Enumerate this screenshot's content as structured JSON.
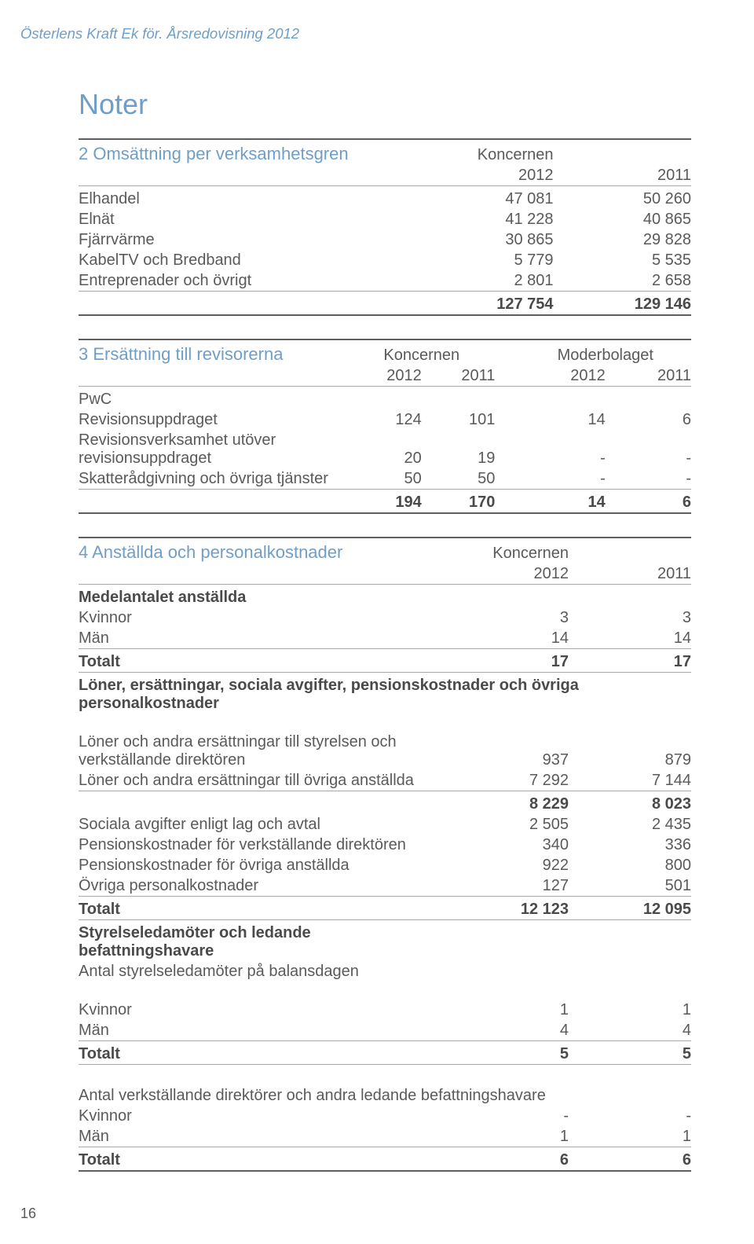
{
  "header": "Österlens Kraft Ek för.  Årsredovisning 2012",
  "title": "Noter",
  "pageNumber": "16",
  "note2": {
    "heading": "2 Omsättning per verksamhetsgren",
    "group": "Koncernen",
    "year1": "2012",
    "year2": "2011",
    "rows": [
      {
        "label": "Elhandel",
        "a": "47 081",
        "b": "50 260"
      },
      {
        "label": "Elnät",
        "a": "41 228",
        "b": "40 865"
      },
      {
        "label": "Fjärrvärme",
        "a": "30 865",
        "b": "29 828"
      },
      {
        "label": "KabelTV och Bredband",
        "a": "5 779",
        "b": "5 535"
      },
      {
        "label": "Entreprenader och övrigt",
        "a": "2 801",
        "b": "2 658"
      }
    ],
    "total": {
      "a": "127 754",
      "b": "129 146"
    }
  },
  "note3": {
    "heading": "3 Ersättning till revisorerna",
    "group1": "Koncernen",
    "group2": "Moderbolaget",
    "year1": "2012",
    "year2": "2011",
    "year3": "2012",
    "year4": "2011",
    "pwc": "PwC",
    "rows": [
      {
        "label": "Revisionsuppdraget",
        "a": "124",
        "b": "101",
        "c": "14",
        "d": "6"
      },
      {
        "label": "Revisionsverksamhet utöver revisionsuppdraget",
        "a": "20",
        "b": "19",
        "c": "-",
        "d": "-"
      },
      {
        "label": "Skatterådgivning och övriga tjänster",
        "a": "50",
        "b": "50",
        "c": "-",
        "d": "-"
      }
    ],
    "total": {
      "a": "194",
      "b": "170",
      "c": "14",
      "d": "6"
    }
  },
  "note4": {
    "heading": "4 Anställda och personalkostnader",
    "group": "Koncernen",
    "year1": "2012",
    "year2": "2011",
    "avgHeading": "Medelantalet anställda",
    "avgRows": [
      {
        "label": "Kvinnor",
        "a": "3",
        "b": "3"
      },
      {
        "label": "Män",
        "a": "14",
        "b": "14"
      }
    ],
    "avgTotal": {
      "label": "Totalt",
      "a": "17",
      "b": "17"
    },
    "wagesHeading": "Löner, ersättningar, sociala avgifter, pensionskostnader och övriga personalkostnader",
    "wageRows1": [
      {
        "label": "Löner och andra ersättningar till styrelsen och verkställande direktören",
        "a": "937",
        "b": "879"
      },
      {
        "label": "Löner och andra ersättningar till övriga anställda",
        "a": "7 292",
        "b": "7 144"
      }
    ],
    "wageSubtotal": {
      "a": "8 229",
      "b": "8 023"
    },
    "wageRows2": [
      {
        "label": "Sociala avgifter enligt lag och avtal",
        "a": "2 505",
        "b": "2 435"
      },
      {
        "label": "Pensionskostnader för verkställande direktören",
        "a": "340",
        "b": "336"
      },
      {
        "label": "Pensionskostnader för övriga anställda",
        "a": "922",
        "b": "800"
      },
      {
        "label": "Övriga personalkostnader",
        "a": "127",
        "b": "501"
      }
    ],
    "wageTotal": {
      "label": "Totalt",
      "a": "12 123",
      "b": "12 095"
    },
    "boardHeading": "Styrelseledamöter och ledande befattningshavare",
    "boardSub": "Antal styrelseledamöter på balansdagen",
    "boardRows": [
      {
        "label": "Kvinnor",
        "a": "1",
        "b": "1"
      },
      {
        "label": "Män",
        "a": "4",
        "b": "4"
      }
    ],
    "boardTotal": {
      "label": "Totalt",
      "a": "5",
      "b": "5"
    },
    "mdHeading": "Antal verkställande direktörer och andra ledande befattningshavare",
    "mdRows": [
      {
        "label": "Kvinnor",
        "a": "-",
        "b": "-"
      },
      {
        "label": "Män",
        "a": "1",
        "b": "1"
      }
    ],
    "mdTotal": {
      "label": "Totalt",
      "a": "6",
      "b": "6"
    }
  }
}
